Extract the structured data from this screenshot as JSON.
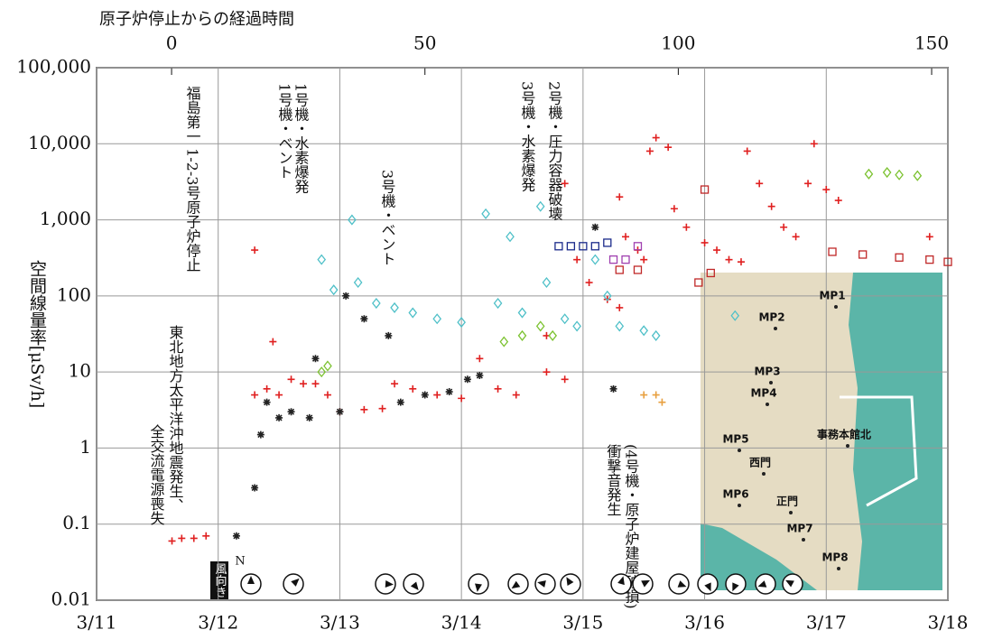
{
  "chart_data": {
    "type": "scatter",
    "log_y": true,
    "grid": true,
    "x2_title": "原子炉停止からの経過時間",
    "y_title": "空間線量率[μSv/h]",
    "xlim": [
      0,
      7
    ],
    "xticks": [
      {
        "value": 0,
        "label": "3/11"
      },
      {
        "value": 1,
        "label": "3/12"
      },
      {
        "value": 2,
        "label": "3/13"
      },
      {
        "value": 3,
        "label": "3/14"
      },
      {
        "value": 4,
        "label": "3/15"
      },
      {
        "value": 5,
        "label": "3/16"
      },
      {
        "value": 6,
        "label": "3/17"
      },
      {
        "value": 7,
        "label": "3/18"
      }
    ],
    "x2lim": [
      -14.8,
      153.2
    ],
    "x2ticks": [
      0,
      50,
      100,
      150
    ],
    "ylim": [
      0.01,
      100000
    ],
    "yticks": [
      0.01,
      0.1,
      1,
      10,
      100,
      {
        "value": 1000,
        "label": "1,000"
      },
      {
        "value": 10000,
        "label": "10,000"
      },
      {
        "value": 100000,
        "label": "100,000"
      }
    ],
    "series": [
      {
        "color": "#e02020",
        "marker": "plus",
        "x": [
          0.62,
          0.7,
          0.8,
          0.9,
          1.3,
          1.4,
          1.5,
          1.6,
          1.7,
          1.8,
          1.9,
          1.3,
          1.45,
          2.0,
          2.2,
          2.35,
          2.45,
          2.6,
          2.8,
          3.0,
          3.15,
          3.3,
          3.45,
          3.7,
          3.85,
          3.7,
          3.85,
          3.95,
          4.05,
          4.2,
          4.3,
          4.3,
          4.35,
          4.45,
          4.5,
          4.55,
          4.6,
          4.7,
          4.75,
          4.85,
          5.0,
          5.1,
          5.2,
          5.3,
          5.35,
          5.45,
          5.55,
          5.65,
          5.75,
          5.85,
          5.9,
          6.0,
          6.1,
          6.85
        ],
        "values": [
          0.06,
          0.065,
          0.065,
          0.07,
          5,
          6,
          5,
          8,
          7,
          7,
          5,
          400,
          25,
          3,
          3.2,
          3.3,
          7,
          6,
          5,
          4.5,
          15,
          6,
          5,
          10,
          8,
          30,
          3000,
          300,
          150,
          90,
          70,
          2000,
          600,
          400,
          300,
          8000,
          12000,
          9000,
          1400,
          800,
          500,
          400,
          300,
          280,
          8000,
          3000,
          1500,
          800,
          600,
          3000,
          10000,
          2500,
          1800,
          600
        ]
      },
      {
        "color": "#222222",
        "marker": "star",
        "x": [
          1.15,
          1.3,
          1.35,
          1.4,
          1.5,
          1.6,
          1.75,
          1.8,
          2.0,
          2.05,
          2.2,
          2.4,
          2.5,
          2.7,
          2.9,
          3.05,
          3.15,
          4.1,
          4.25
        ],
        "values": [
          0.07,
          0.3,
          1.5,
          4,
          2.5,
          3,
          2.5,
          15,
          3,
          100,
          50,
          30,
          4,
          5,
          5.5,
          8,
          9,
          800,
          6
        ]
      },
      {
        "color": "#4fc0c8",
        "marker": "diamond",
        "x": [
          1.85,
          1.95,
          2.1,
          2.15,
          2.3,
          2.45,
          2.6,
          2.8,
          3.0,
          3.2,
          3.3,
          3.4,
          3.5,
          3.65,
          3.7,
          3.85,
          3.95,
          4.1,
          4.2,
          4.3,
          4.5,
          4.6,
          5.25
        ],
        "values": [
          300,
          120,
          1000,
          150,
          80,
          70,
          60,
          50,
          45,
          1200,
          80,
          600,
          60,
          1500,
          150,
          50,
          40,
          300,
          100,
          40,
          35,
          30,
          55
        ]
      },
      {
        "color": "#7cc230",
        "marker": "diamond",
        "x": [
          1.85,
          1.9,
          3.35,
          3.5,
          3.65,
          3.75,
          6.35,
          6.5,
          6.6,
          6.75
        ],
        "values": [
          10,
          12,
          25,
          30,
          40,
          30,
          4000,
          4200,
          3900,
          3800
        ]
      },
      {
        "color": "#1a2a8a",
        "marker": "square",
        "x": [
          3.8,
          3.9,
          4.0,
          4.1,
          4.2
        ],
        "values": [
          450,
          450,
          450,
          450,
          500
        ]
      },
      {
        "color": "#a040b0",
        "marker": "square",
        "x": [
          4.25,
          4.35,
          4.45
        ],
        "values": [
          300,
          300,
          450
        ]
      },
      {
        "color": "#e8a040",
        "marker": "plus",
        "x": [
          4.5,
          4.6,
          4.65
        ],
        "values": [
          5,
          5,
          4
        ]
      },
      {
        "color": "#c02828",
        "marker": "square",
        "x": [
          4.3,
          4.45,
          5.0,
          4.95,
          5.05,
          6.05,
          6.3,
          6.6,
          6.85,
          7.0
        ],
        "values": [
          220,
          220,
          2500,
          150,
          200,
          380,
          350,
          320,
          300,
          280
        ]
      }
    ],
    "annotations": [
      "福島第一 1-2-3号原子炉停止",
      "東北地方太平洋沖地震発生、",
      "全交流電源喪失",
      "1号機・ベント",
      "1号機・水素爆発",
      "3号機・ベント",
      "3号機・水素爆発",
      "2号機・圧力容器破壊",
      "衝撃音発生",
      "(4号機・原子炉建屋破損)"
    ],
    "wind": {
      "label": "風向き",
      "north": "N"
    }
  },
  "map": {
    "labels": [
      "MP1",
      "MP2",
      "MP3",
      "MP4",
      "MP5",
      "事務本館北",
      "西門",
      "MP6",
      "正門",
      "MP7",
      "MP8"
    ]
  }
}
